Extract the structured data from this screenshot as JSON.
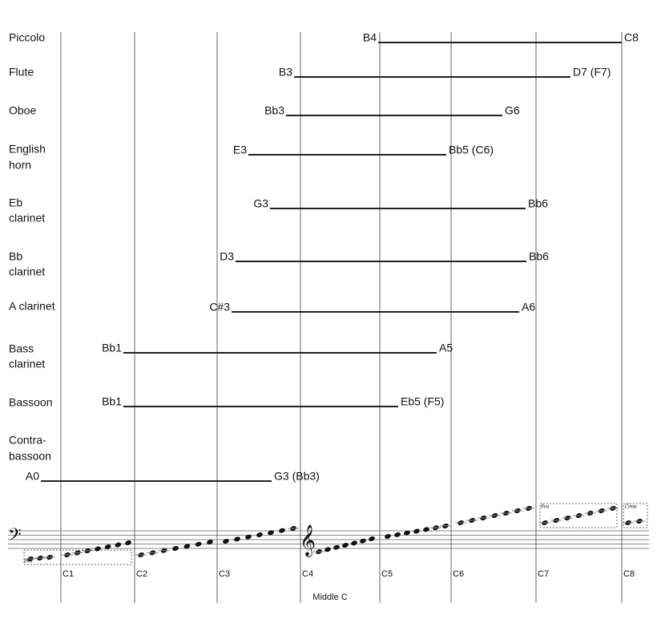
{
  "instruments": [
    {
      "name": [
        "Piccolo"
      ],
      "low": "B4",
      "high": "C8"
    },
    {
      "name": [
        "Flute"
      ],
      "low": "B3",
      "high": "D7 (F7)"
    },
    {
      "name": [
        "Oboe"
      ],
      "low": "Bb3",
      "high": "G6"
    },
    {
      "name": [
        "English",
        "horn"
      ],
      "low": "E3",
      "high": "Bb5 (C6)"
    },
    {
      "name": [
        "Eb",
        "clarinet"
      ],
      "low": "G3",
      "high": "Bb6"
    },
    {
      "name": [
        "Bb",
        "clarinet"
      ],
      "low": "D3",
      "high": "Bb6"
    },
    {
      "name": [
        "A clarinet"
      ],
      "low": "C#3",
      "high": "A6"
    },
    {
      "name": [
        "Bass",
        "clarinet"
      ],
      "low": "Bb1",
      "high": "A5"
    },
    {
      "name": [
        "Bassoon"
      ],
      "low": "Bb1",
      "high": "Eb5 (F5)"
    },
    {
      "name": [
        "Contra-",
        "bassoon"
      ],
      "low": "A0",
      "high": "G3 (Bb3)"
    }
  ],
  "octaves": [
    "C1",
    "C2",
    "C3",
    "C4",
    "C5",
    "C6",
    "C7",
    "C8"
  ],
  "middle_c": "Middle C",
  "octave_marks": [
    "8vb",
    "8va",
    "15ma"
  ]
}
